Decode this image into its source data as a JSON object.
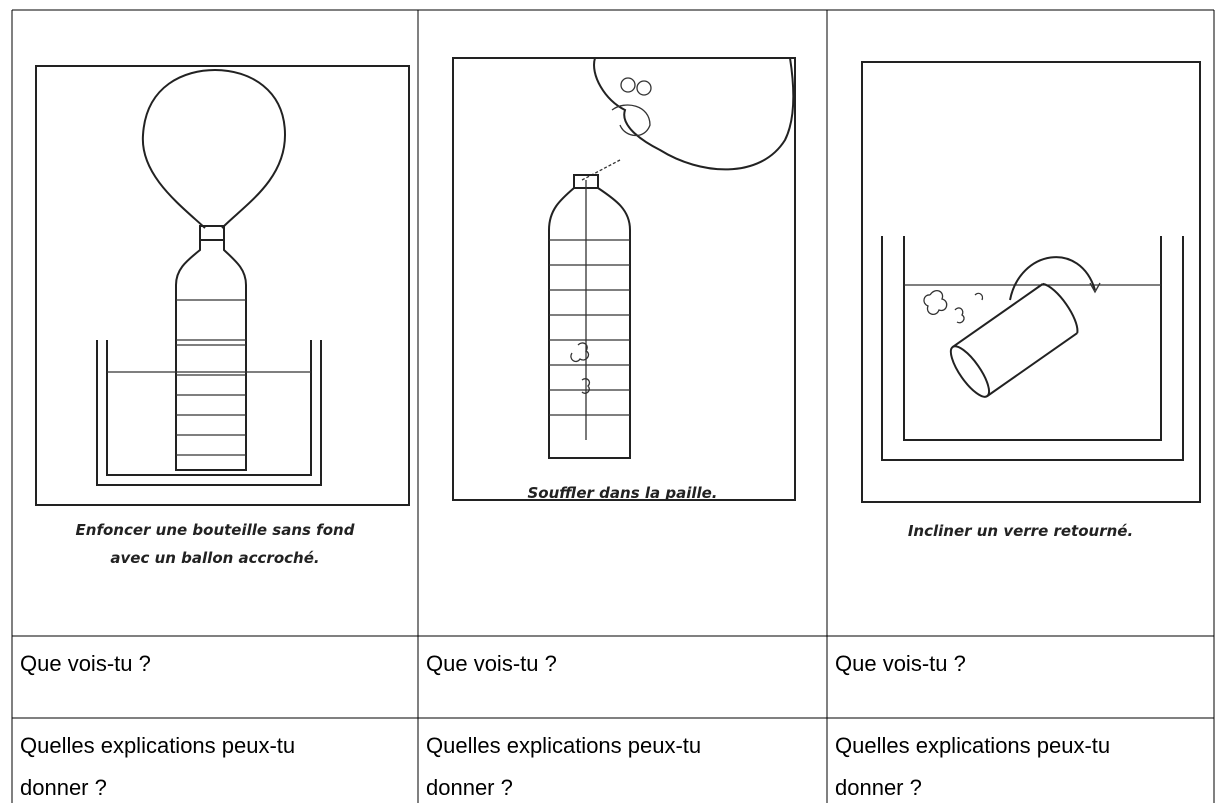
{
  "panels": [
    {
      "caption": [
        "Enfoncer une bouteille sans fond",
        "avec un ballon accroché."
      ]
    },
    {
      "caption": [
        "Souffler dans la paille."
      ]
    },
    {
      "caption": [
        "Incliner un verre retourné."
      ]
    }
  ],
  "rows": [
    [
      [
        "Que vois-tu ?"
      ],
      [
        "Que vois-tu ?"
      ],
      [
        "Que vois-tu ?"
      ]
    ],
    [
      [
        "Quelles explications peux-tu",
        "donner ?"
      ],
      [
        "Quelles explications peux-tu",
        "donner ?"
      ],
      [
        "Quelles explications peux-tu",
        "donner ?"
      ]
    ]
  ]
}
